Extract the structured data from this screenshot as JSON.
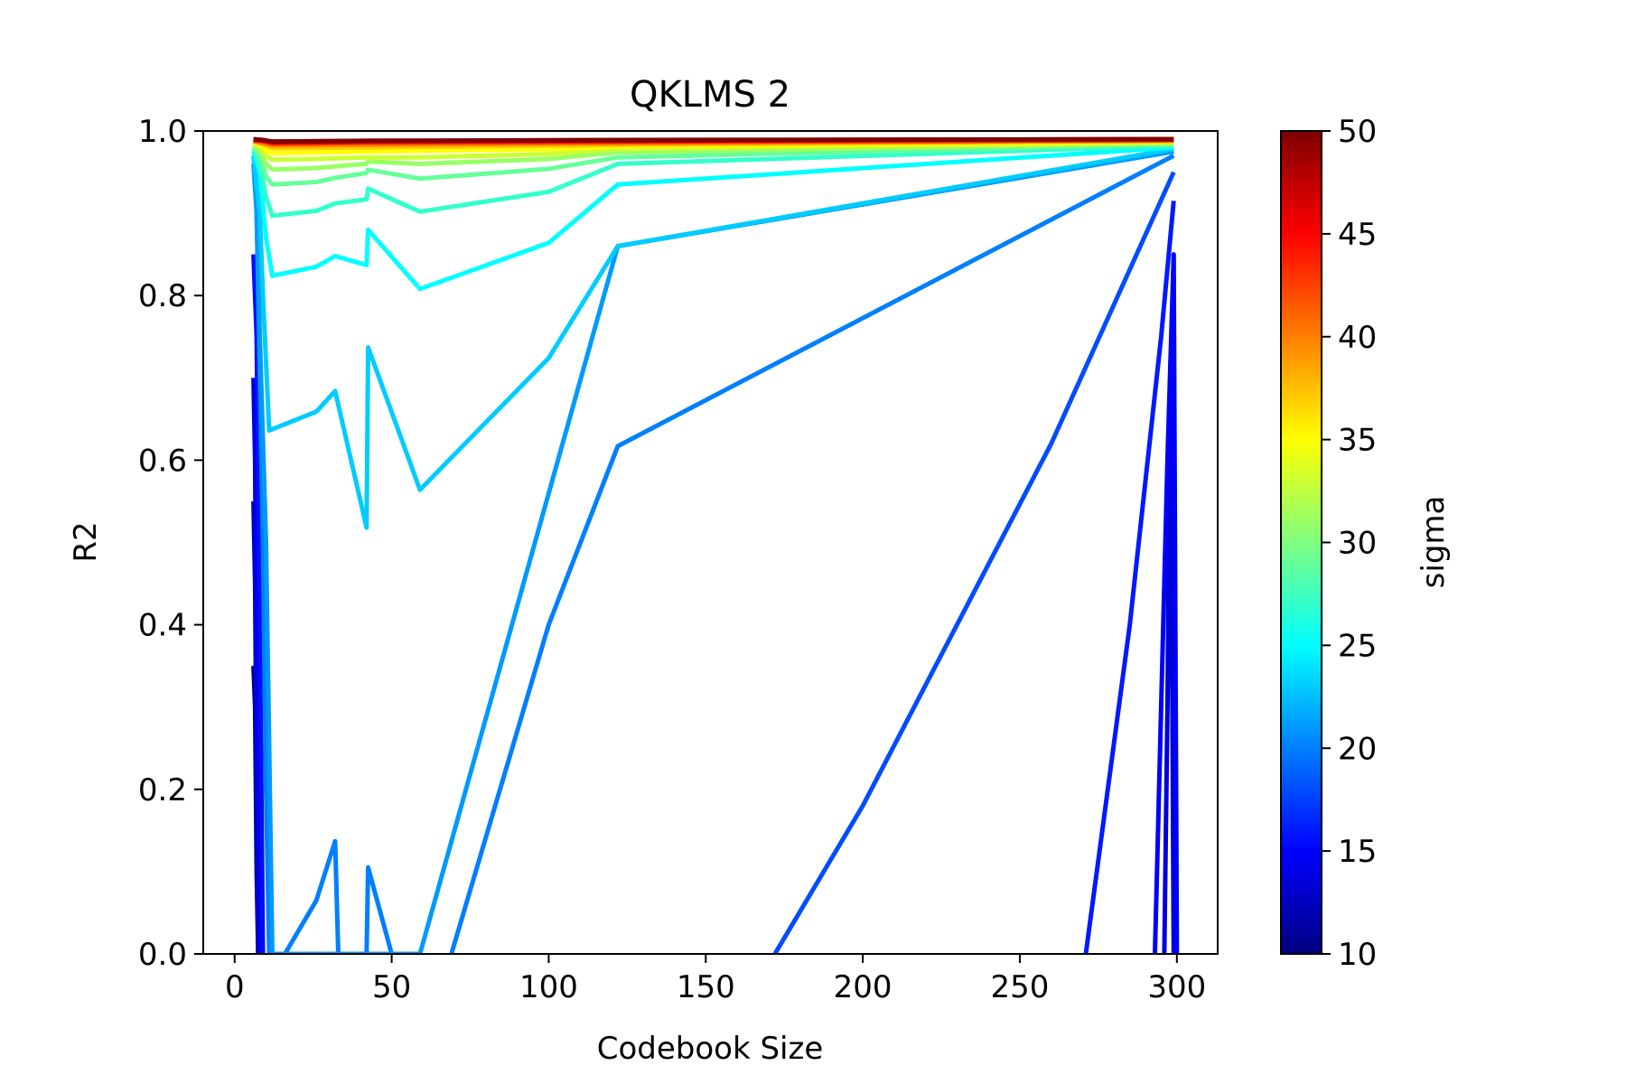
{
  "chart_data": {
    "type": "line",
    "title": "QKLMS 2",
    "xlabel": "Codebook Size",
    "ylabel": "R2",
    "xlim": [
      -10,
      313
    ],
    "ylim": [
      0,
      1
    ],
    "xticks": [
      0,
      50,
      100,
      150,
      200,
      250,
      300
    ],
    "xtick_labels": [
      "0",
      "50",
      "100",
      "150",
      "200",
      "250",
      "300"
    ],
    "yticks": [
      0,
      0.2,
      0.4,
      0.6,
      0.8,
      1.0
    ],
    "ytick_labels": [
      "0.0",
      "0.2",
      "0.4",
      "0.6",
      "0.8",
      "1.0"
    ],
    "grid": false,
    "colorbar": {
      "label": "sigma",
      "min": 10,
      "max": 50,
      "colormap": "jet",
      "ticks": [
        10,
        15,
        20,
        25,
        30,
        35,
        40,
        45,
        50
      ],
      "tick_labels": [
        "10",
        "15",
        "20",
        "25",
        "30",
        "35",
        "40",
        "45",
        "50"
      ],
      "stops": [
        "#00007f",
        "#0000ff",
        "#007fff",
        "#00ffff",
        "#7fff7f",
        "#ffff00",
        "#ff7f00",
        "#ff0000",
        "#7f0000"
      ]
    },
    "series": [
      {
        "sigma": 10,
        "x": [
          6,
          6.5,
          7,
          7.5
        ],
        "y": [
          0.35,
          0.3,
          0.1,
          0.0
        ]
      },
      {
        "sigma": 12,
        "x": [
          6,
          6.5,
          7,
          7.5
        ],
        "y": [
          0.55,
          0.45,
          0.2,
          0.0
        ]
      },
      {
        "sigma": 13.5,
        "x": [
          296,
          297,
          298,
          299
        ],
        "y": [
          0.0,
          0.3,
          0.72,
          0.0
        ]
      },
      {
        "sigma": 14,
        "x": [
          6,
          6.5,
          7,
          8
        ],
        "y": [
          0.7,
          0.6,
          0.3,
          0.0
        ]
      },
      {
        "sigma": 15,
        "x": [
          293,
          295,
          297,
          299,
          300
        ],
        "y": [
          0.0,
          0.3,
          0.6,
          0.85,
          0.0
        ]
      },
      {
        "sigma": 15.5,
        "x": [
          6,
          7,
          8,
          9
        ],
        "y": [
          0.85,
          0.75,
          0.4,
          0.0
        ]
      },
      {
        "sigma": 16,
        "x": [
          271,
          285,
          295,
          299
        ],
        "y": [
          0.0,
          0.4,
          0.75,
          0.915
        ]
      },
      {
        "sigma": 18,
        "x": [
          172,
          200,
          230,
          260,
          299
        ],
        "y": [
          0.0,
          0.18,
          0.4,
          0.62,
          0.95
        ]
      },
      {
        "sigma": 20,
        "x": [
          7,
          8,
          9,
          10,
          11
        ],
        "y": [
          0.9,
          0.7,
          0.5,
          0.2,
          0.0
        ]
      },
      {
        "sigma": 20,
        "x": [
          16,
          26,
          32,
          33
        ],
        "y": [
          0.0,
          0.065,
          0.137,
          0.0
        ]
      },
      {
        "sigma": 20,
        "x": [
          42,
          42.5,
          50
        ],
        "y": [
          0.0,
          0.105,
          0.0
        ]
      },
      {
        "sigma": 20,
        "x": [
          69,
          100,
          122,
          299
        ],
        "y": [
          0.0,
          0.4,
          0.617,
          0.97
        ]
      },
      {
        "sigma": 21,
        "x": [
          6,
          7,
          8,
          10,
          12,
          26,
          32,
          42,
          42.5,
          59,
          122,
          299
        ],
        "y": [
          0.96,
          0.9,
          0.75,
          0.5,
          0.0,
          0.0,
          0.0,
          0.0,
          0.0,
          0.0,
          0.86,
          0.975
        ]
      },
      {
        "sigma": 23,
        "x": [
          6,
          8,
          9,
          11,
          26,
          32,
          42,
          42.5,
          59,
          100,
          122,
          299
        ],
        "y": [
          0.97,
          0.9,
          0.8,
          0.636,
          0.659,
          0.684,
          0.518,
          0.737,
          0.564,
          0.724,
          0.86,
          0.978
        ]
      },
      {
        "sigma": 25,
        "x": [
          6,
          8,
          10,
          12,
          26,
          32,
          42,
          42.5,
          59,
          100,
          122,
          299
        ],
        "y": [
          0.975,
          0.95,
          0.87,
          0.824,
          0.835,
          0.848,
          0.837,
          0.88,
          0.808,
          0.864,
          0.935,
          0.98
        ]
      },
      {
        "sigma": 27,
        "x": [
          6,
          8,
          10,
          12,
          26,
          32,
          42,
          42.5,
          59,
          100,
          122,
          299
        ],
        "y": [
          0.978,
          0.96,
          0.92,
          0.897,
          0.903,
          0.912,
          0.917,
          0.93,
          0.902,
          0.926,
          0.96,
          0.982
        ]
      },
      {
        "sigma": 29,
        "x": [
          6,
          8,
          10,
          12,
          26,
          32,
          42,
          42.5,
          59,
          100,
          122,
          299
        ],
        "y": [
          0.98,
          0.97,
          0.945,
          0.935,
          0.938,
          0.943,
          0.949,
          0.953,
          0.942,
          0.954,
          0.968,
          0.984
        ]
      },
      {
        "sigma": 31,
        "x": [
          6,
          8,
          10,
          12,
          26,
          32,
          42,
          42.5,
          59,
          100,
          122,
          299
        ],
        "y": [
          0.983,
          0.975,
          0.96,
          0.953,
          0.955,
          0.957,
          0.96,
          0.963,
          0.96,
          0.966,
          0.974,
          0.985
        ]
      },
      {
        "sigma": 33,
        "x": [
          6,
          8,
          10,
          12,
          26,
          42,
          59,
          100,
          122,
          299
        ],
        "y": [
          0.985,
          0.98,
          0.97,
          0.965,
          0.966,
          0.968,
          0.968,
          0.972,
          0.978,
          0.986
        ]
      },
      {
        "sigma": 35,
        "x": [
          6,
          8,
          10,
          12,
          42,
          100,
          122,
          299
        ],
        "y": [
          0.986,
          0.983,
          0.976,
          0.973,
          0.975,
          0.978,
          0.981,
          0.987
        ]
      },
      {
        "sigma": 37,
        "x": [
          6,
          8,
          12,
          42,
          122,
          299
        ],
        "y": [
          0.987,
          0.985,
          0.979,
          0.98,
          0.983,
          0.988
        ]
      },
      {
        "sigma": 39,
        "x": [
          6,
          8,
          12,
          42,
          122,
          299
        ],
        "y": [
          0.988,
          0.986,
          0.982,
          0.983,
          0.985,
          0.988
        ]
      },
      {
        "sigma": 41,
        "x": [
          6,
          8,
          12,
          42,
          122,
          299
        ],
        "y": [
          0.988,
          0.987,
          0.984,
          0.985,
          0.986,
          0.989
        ]
      },
      {
        "sigma": 43,
        "x": [
          6,
          9,
          12,
          42,
          122,
          299
        ],
        "y": [
          0.989,
          0.988,
          0.985,
          0.986,
          0.987,
          0.989
        ]
      },
      {
        "sigma": 45,
        "x": [
          6,
          9,
          12,
          42,
          122,
          299
        ],
        "y": [
          0.989,
          0.988,
          0.986,
          0.987,
          0.988,
          0.99
        ]
      },
      {
        "sigma": 47,
        "x": [
          6,
          9,
          12,
          42,
          122,
          299
        ],
        "y": [
          0.99,
          0.989,
          0.987,
          0.988,
          0.988,
          0.99
        ]
      },
      {
        "sigma": 50,
        "x": [
          6,
          9,
          12,
          42,
          122,
          299
        ],
        "y": [
          0.99,
          0.989,
          0.987,
          0.988,
          0.989,
          0.99
        ]
      }
    ]
  }
}
